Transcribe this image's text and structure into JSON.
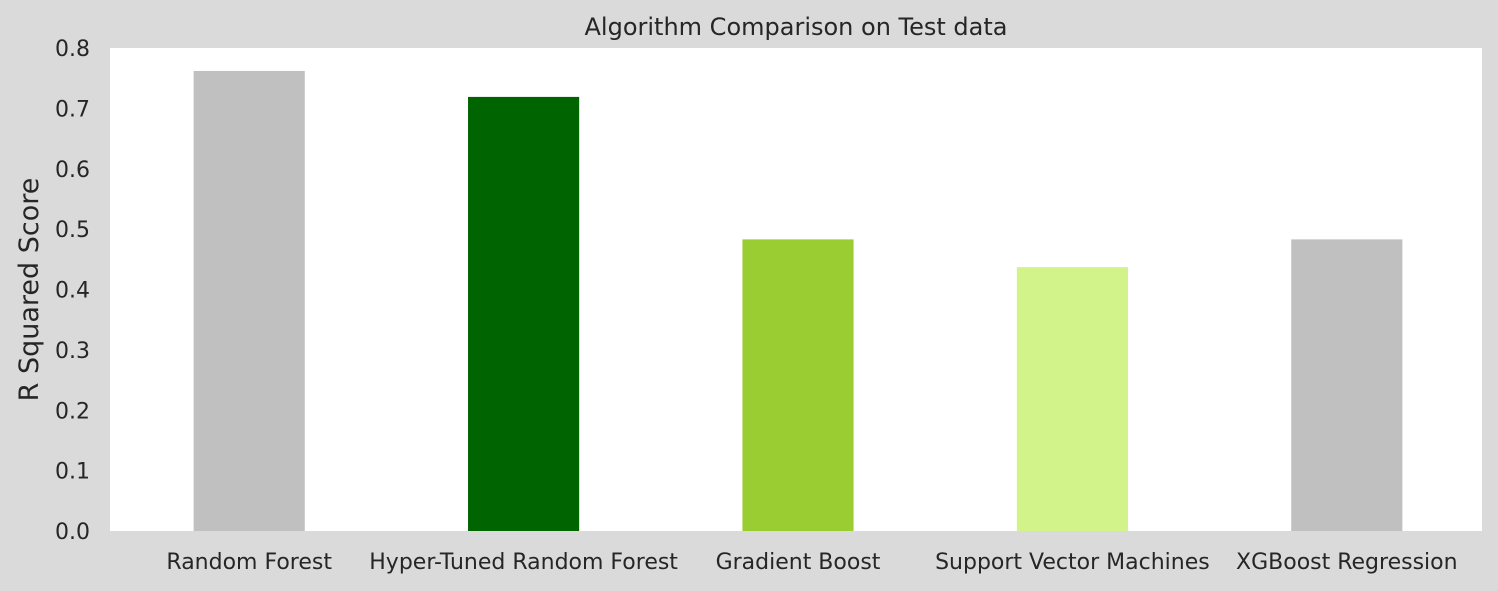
{
  "chart_data": {
    "type": "bar",
    "title": "Algorithm Comparison on Test data",
    "xlabel": "",
    "ylabel": "R Squared Score",
    "categories": [
      "Random Forest",
      "Hyper-Tuned Random Forest",
      "Gradient Boost",
      "Support Vector Machines",
      "XGBoost Regression"
    ],
    "values": [
      0.762,
      0.719,
      0.483,
      0.437,
      0.483
    ],
    "colors": [
      "#c0c0c0",
      "#006400",
      "#9acd32",
      "#d2f28a",
      "#c0c0c0"
    ],
    "ylim": [
      0,
      0.8
    ],
    "yticks": [
      "0.0",
      "0.1",
      "0.2",
      "0.3",
      "0.4",
      "0.5",
      "0.6",
      "0.7",
      "0.8"
    ],
    "grid": false,
    "legend": "none",
    "background": "#dadada",
    "plot_background": "#ffffff"
  }
}
